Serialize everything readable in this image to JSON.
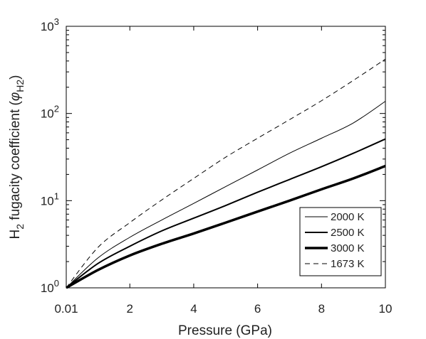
{
  "chart_data": {
    "type": "line",
    "xlabel": "Pressure (GPa)",
    "ylabel": {
      "base": "H",
      "base_sub": "2",
      "text": " fugacity coefficient (",
      "symbol": "φ",
      "symbol_sub": "H2",
      "close": ")"
    },
    "xlim": [
      0.01,
      10
    ],
    "ylim": [
      1,
      1000
    ],
    "yscale": "log",
    "grid": false,
    "box": true,
    "legend_position": "bottom-right",
    "x_ticks": [
      {
        "value": 0.01,
        "label": "0.01"
      },
      {
        "value": 2,
        "label": "2"
      },
      {
        "value": 4,
        "label": "4"
      },
      {
        "value": 6,
        "label": "6"
      },
      {
        "value": 8,
        "label": "8"
      },
      {
        "value": 10,
        "label": "10"
      }
    ],
    "y_ticks": [
      {
        "value": 1,
        "base": "10",
        "exp": "0"
      },
      {
        "value": 10,
        "base": "10",
        "exp": "1"
      },
      {
        "value": 100,
        "base": "10",
        "exp": "2"
      },
      {
        "value": 1000,
        "base": "10",
        "exp": "3"
      }
    ],
    "series": [
      {
        "name": "2000 K",
        "stroke": "thin",
        "dash": false,
        "x": [
          0.01,
          1,
          2,
          3,
          4,
          5,
          6,
          7,
          8,
          9,
          10
        ],
        "y": [
          1.0,
          2.2,
          3.8,
          6.0,
          9.3,
          14.5,
          22.5,
          35,
          52,
          78,
          138
        ]
      },
      {
        "name": "2500 K",
        "stroke": "medium",
        "dash": false,
        "x": [
          0.01,
          1,
          2,
          3,
          4,
          5,
          6,
          7,
          8,
          9,
          10
        ],
        "y": [
          1.0,
          1.9,
          3.0,
          4.5,
          6.3,
          8.8,
          12.5,
          17.5,
          24.5,
          35,
          51
        ]
      },
      {
        "name": "3000 K",
        "stroke": "thick",
        "dash": false,
        "x": [
          0.01,
          1,
          2,
          3,
          4,
          5,
          6,
          7,
          8,
          9,
          10
        ],
        "y": [
          1.0,
          1.6,
          2.35,
          3.2,
          4.2,
          5.6,
          7.5,
          10,
          13.5,
          18,
          25
        ]
      },
      {
        "name": "1673 K",
        "stroke": "thin",
        "dash": true,
        "x": [
          0.01,
          1,
          2,
          3,
          4,
          5,
          6,
          7,
          8,
          9,
          10
        ],
        "y": [
          1.0,
          2.9,
          5.6,
          10.2,
          18,
          31.5,
          52,
          85,
          140,
          240,
          420
        ]
      }
    ]
  },
  "colors": {
    "axis": "#000000",
    "line": "#000000",
    "text": "#222222",
    "background": "#ffffff"
  }
}
